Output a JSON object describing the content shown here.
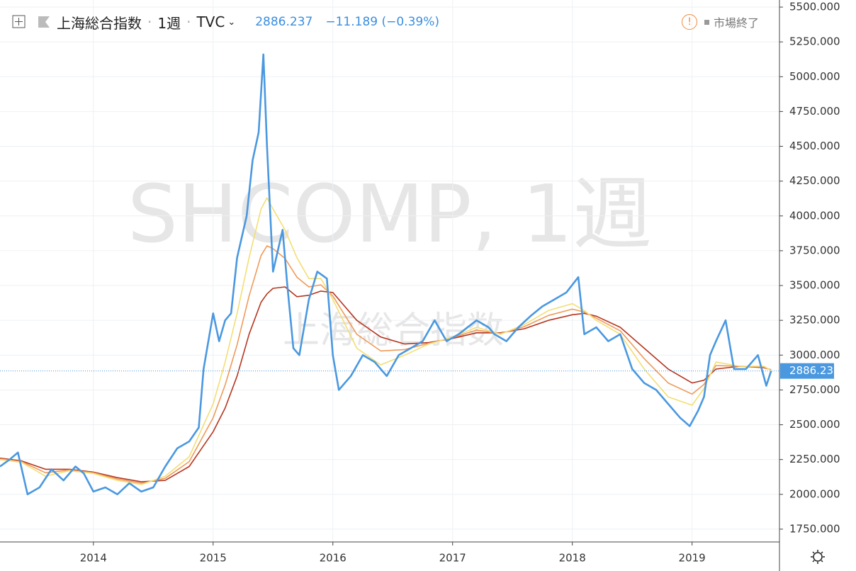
{
  "header": {
    "symbol": "上海総合指数",
    "interval": "1週",
    "exchange": "TVC",
    "change": "−11.189 (−0.39%)",
    "status": "市場終了"
  },
  "watermark": {
    "main": "SHCOMP, 1週",
    "sub": "上海総合指数"
  },
  "chart_data": {
    "type": "line",
    "last_price": 2886.237,
    "xlim": [
      2013.22,
      2019.73
    ],
    "xticks": [
      2014,
      2015,
      2016,
      2017,
      2018,
      2019
    ],
    "ylim": [
      1658,
      5551
    ],
    "yticks": [
      {
        "value": 1750,
        "label": "1750.000"
      },
      {
        "value": 2000,
        "label": "2000.000"
      },
      {
        "value": 2250,
        "label": "2250.000"
      },
      {
        "value": 2500,
        "label": "2500.000"
      },
      {
        "value": 2750,
        "label": "2750.000"
      },
      {
        "value": 3000,
        "label": "3000.000"
      },
      {
        "value": 3250,
        "label": "3250.000"
      },
      {
        "value": 3500,
        "label": "3500.000"
      },
      {
        "value": 3750,
        "label": "3750.000"
      },
      {
        "value": 4000,
        "label": "4000.000"
      },
      {
        "value": 4250,
        "label": "4250.000"
      },
      {
        "value": 4500,
        "label": "4500.000"
      },
      {
        "value": 4750,
        "label": "4750.000"
      },
      {
        "value": 5000,
        "label": "5000.000"
      },
      {
        "value": 5250,
        "label": "5250.000"
      },
      {
        "value": 5500,
        "label": "5500.000"
      }
    ],
    "grid": true,
    "series": [
      {
        "color": "#b5351f",
        "x": [
          2013.22,
          2013.4,
          2013.6,
          2013.8,
          2014.0,
          2014.2,
          2014.4,
          2014.6,
          2014.8,
          2015.0,
          2015.1,
          2015.2,
          2015.3,
          2015.4,
          2015.45,
          2015.5,
          2015.6,
          2015.7,
          2015.8,
          2015.9,
          2016.0,
          2016.2,
          2016.4,
          2016.6,
          2016.8,
          2017.0,
          2017.2,
          2017.4,
          2017.6,
          2017.8,
          2018.0,
          2018.1,
          2018.2,
          2018.4,
          2018.6,
          2018.8,
          2019.0,
          2019.1,
          2019.2,
          2019.4,
          2019.6,
          2019.66
        ],
        "values": [
          2260,
          2240,
          2180,
          2180,
          2160,
          2120,
          2090,
          2100,
          2200,
          2450,
          2620,
          2850,
          3150,
          3380,
          3440,
          3480,
          3490,
          3420,
          3430,
          3460,
          3450,
          3250,
          3130,
          3080,
          3090,
          3120,
          3160,
          3160,
          3190,
          3250,
          3290,
          3300,
          3280,
          3200,
          3050,
          2900,
          2800,
          2820,
          2900,
          2920,
          2910,
          2895
        ]
      },
      {
        "color": "#ef9a5a",
        "x": [
          2013.22,
          2013.4,
          2013.6,
          2013.8,
          2014.0,
          2014.2,
          2014.4,
          2014.6,
          2014.8,
          2015.0,
          2015.1,
          2015.2,
          2015.3,
          2015.4,
          2015.45,
          2015.5,
          2015.6,
          2015.7,
          2015.8,
          2015.9,
          2016.0,
          2016.2,
          2016.4,
          2016.6,
          2016.8,
          2017.0,
          2017.2,
          2017.4,
          2017.6,
          2017.8,
          2018.0,
          2018.1,
          2018.2,
          2018.4,
          2018.6,
          2018.8,
          2019.0,
          2019.1,
          2019.2,
          2019.4,
          2019.6,
          2019.66
        ],
        "values": [
          2255,
          2235,
          2155,
          2175,
          2155,
          2110,
          2080,
          2115,
          2235,
          2550,
          2785,
          3075,
          3425,
          3715,
          3785,
          3765,
          3695,
          3560,
          3490,
          3505,
          3425,
          3150,
          3030,
          3040,
          3085,
          3125,
          3180,
          3155,
          3205,
          3285,
          3330,
          3310,
          3265,
          3175,
          2975,
          2800,
          2720,
          2790,
          2925,
          2920,
          2915,
          2892
        ]
      },
      {
        "color": "#f3de73",
        "x": [
          2013.22,
          2013.4,
          2013.6,
          2013.8,
          2014.0,
          2014.2,
          2014.4,
          2014.6,
          2014.8,
          2015.0,
          2015.1,
          2015.2,
          2015.3,
          2015.4,
          2015.45,
          2015.5,
          2015.6,
          2015.7,
          2015.8,
          2015.9,
          2016.0,
          2016.2,
          2016.4,
          2016.6,
          2016.8,
          2017.0,
          2017.2,
          2017.4,
          2017.6,
          2017.8,
          2018.0,
          2018.1,
          2018.2,
          2018.4,
          2018.6,
          2018.8,
          2019.0,
          2019.1,
          2019.2,
          2019.4,
          2019.6,
          2019.66
        ],
        "values": [
          2250,
          2230,
          2130,
          2170,
          2150,
          2100,
          2070,
          2130,
          2270,
          2650,
          2950,
          3300,
          3700,
          4050,
          4130,
          4050,
          3900,
          3700,
          3550,
          3550,
          3400,
          3050,
          2930,
          3000,
          3080,
          3130,
          3200,
          3150,
          3220,
          3320,
          3370,
          3320,
          3250,
          3150,
          2900,
          2700,
          2640,
          2760,
          2950,
          2920,
          2920,
          2890
        ]
      },
      {
        "color": "#4a98e0",
        "x": [
          2013.22,
          2013.3,
          2013.37,
          2013.45,
          2013.55,
          2013.65,
          2013.75,
          2013.85,
          2013.92,
          2014.0,
          2014.1,
          2014.2,
          2014.3,
          2014.4,
          2014.5,
          2014.6,
          2014.7,
          2014.8,
          2014.88,
          2014.92,
          2015.0,
          2015.05,
          2015.1,
          2015.15,
          2015.2,
          2015.28,
          2015.33,
          2015.38,
          2015.42,
          2015.45,
          2015.5,
          2015.58,
          2015.62,
          2015.67,
          2015.72,
          2015.8,
          2015.87,
          2015.95,
          2016.0,
          2016.05,
          2016.15,
          2016.25,
          2016.35,
          2016.45,
          2016.55,
          2016.65,
          2016.75,
          2016.85,
          2016.95,
          2017.05,
          2017.2,
          2017.3,
          2017.35,
          2017.45,
          2017.55,
          2017.65,
          2017.75,
          2017.85,
          2017.95,
          2018.05,
          2018.1,
          2018.2,
          2018.3,
          2018.4,
          2018.5,
          2018.6,
          2018.7,
          2018.8,
          2018.9,
          2018.98,
          2019.05,
          2019.1,
          2019.15,
          2019.2,
          2019.28,
          2019.35,
          2019.45,
          2019.55,
          2019.62,
          2019.66
        ],
        "values": [
          2200,
          2250,
          2300,
          2000,
          2050,
          2180,
          2100,
          2200,
          2150,
          2020,
          2050,
          2000,
          2080,
          2020,
          2050,
          2200,
          2330,
          2380,
          2480,
          2900,
          3300,
          3100,
          3250,
          3300,
          3700,
          4000,
          4400,
          4600,
          5160,
          4500,
          3600,
          3900,
          3500,
          3050,
          3000,
          3400,
          3600,
          3550,
          3000,
          2750,
          2850,
          3000,
          2950,
          2850,
          3000,
          3050,
          3100,
          3250,
          3100,
          3150,
          3250,
          3200,
          3150,
          3100,
          3200,
          3280,
          3350,
          3400,
          3450,
          3560,
          3150,
          3200,
          3100,
          3150,
          2900,
          2800,
          2750,
          2650,
          2550,
          2490,
          2600,
          2700,
          3000,
          3100,
          3250,
          2900,
          2900,
          3000,
          2780,
          2886
        ]
      }
    ]
  }
}
